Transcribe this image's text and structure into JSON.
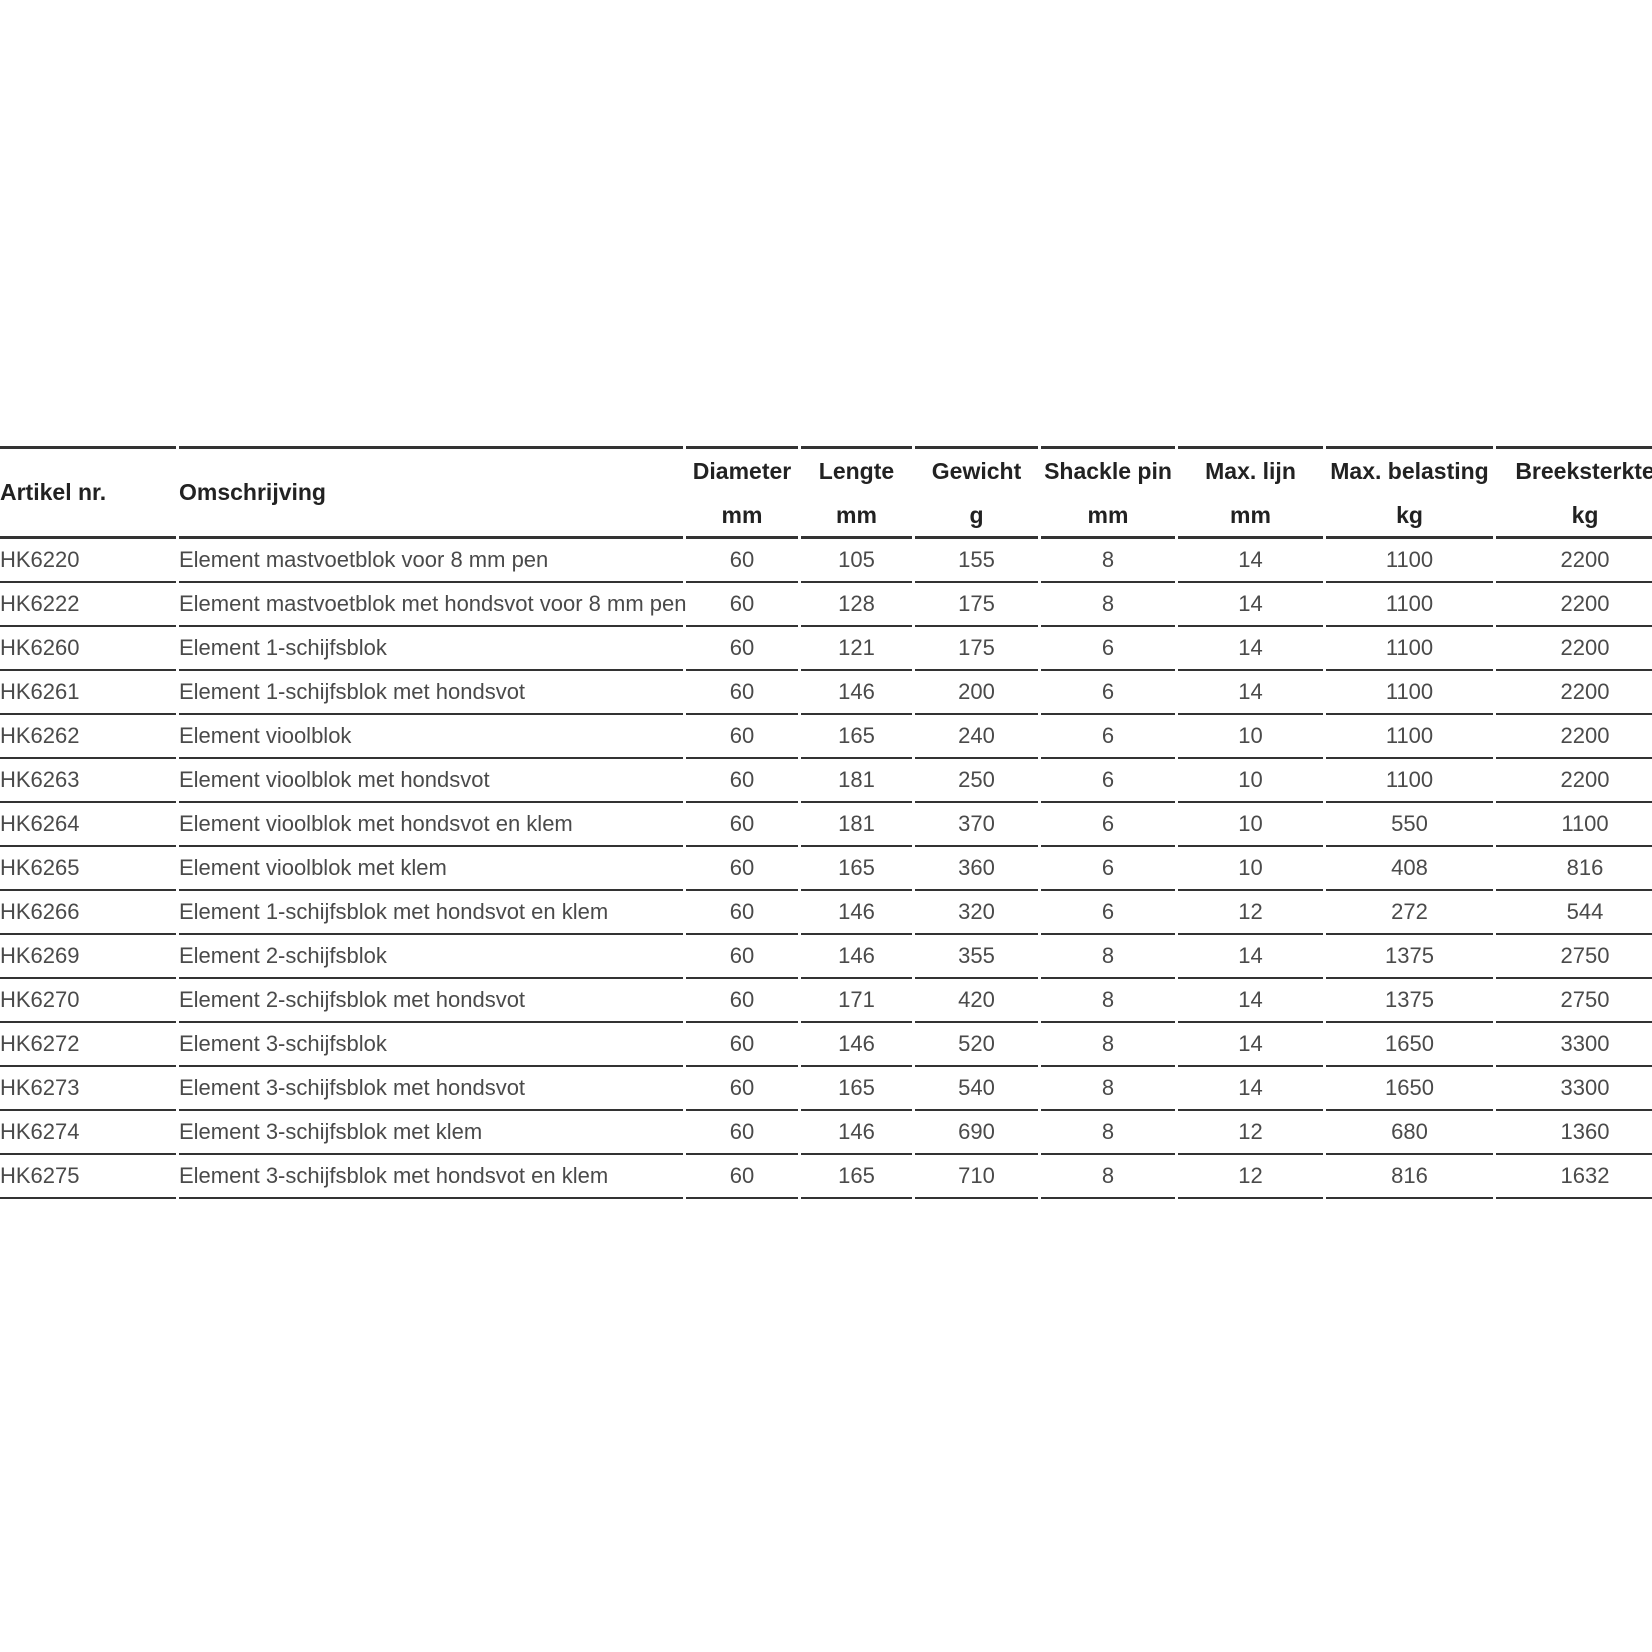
{
  "table": {
    "columns": [
      {
        "name": "Artikel nr."
      },
      {
        "name": "Omschrijving"
      },
      {
        "name": "Diameter",
        "unit": "mm"
      },
      {
        "name": "Lengte",
        "unit": "mm"
      },
      {
        "name": "Gewicht",
        "unit": "g"
      },
      {
        "name": "Shackle pin",
        "unit": "mm"
      },
      {
        "name": "Max. lijn",
        "unit": "mm"
      },
      {
        "name": "Max. belasting",
        "unit": "kg"
      },
      {
        "name": "Breeksterkte",
        "unit": "kg"
      }
    ],
    "rows": [
      [
        "HK6220",
        "Element mastvoetblok voor 8 mm pen",
        60,
        105,
        155,
        8,
        14,
        1100,
        2200
      ],
      [
        "HK6222",
        "Element mastvoetblok met hondsvot voor 8 mm pen",
        60,
        128,
        175,
        8,
        14,
        1100,
        2200
      ],
      [
        "HK6260",
        "Element 1-schijfsblok",
        60,
        121,
        175,
        6,
        14,
        1100,
        2200
      ],
      [
        "HK6261",
        "Element 1-schijfsblok met hondsvot",
        60,
        146,
        200,
        6,
        14,
        1100,
        2200
      ],
      [
        "HK6262",
        "Element vioolblok",
        60,
        165,
        240,
        6,
        10,
        1100,
        2200
      ],
      [
        "HK6263",
        "Element vioolblok met hondsvot",
        60,
        181,
        250,
        6,
        10,
        1100,
        2200
      ],
      [
        "HK6264",
        "Element vioolblok met hondsvot en klem",
        60,
        181,
        370,
        6,
        10,
        550,
        1100
      ],
      [
        "HK6265",
        "Element vioolblok met klem",
        60,
        165,
        360,
        6,
        10,
        408,
        816
      ],
      [
        "HK6266",
        "Element 1-schijfsblok met hondsvot en klem",
        60,
        146,
        320,
        6,
        12,
        272,
        544
      ],
      [
        "HK6269",
        "Element 2-schijfsblok",
        60,
        146,
        355,
        8,
        14,
        1375,
        2750
      ],
      [
        "HK6270",
        "Element 2-schijfsblok met hondsvot",
        60,
        171,
        420,
        8,
        14,
        1375,
        2750
      ],
      [
        "HK6272",
        "Element 3-schijfsblok",
        60,
        146,
        520,
        8,
        14,
        1650,
        3300
      ],
      [
        "HK6273",
        "Element 3-schijfsblok met hondsvot",
        60,
        165,
        540,
        8,
        14,
        1650,
        3300
      ],
      [
        "HK6274",
        "Element 3-schijfsblok met klem",
        60,
        146,
        690,
        8,
        12,
        680,
        1360
      ],
      [
        "HK6275",
        "Element 3-schijfsblok met hondsvot en klem",
        60,
        165,
        710,
        8,
        12,
        816,
        1632
      ]
    ]
  }
}
